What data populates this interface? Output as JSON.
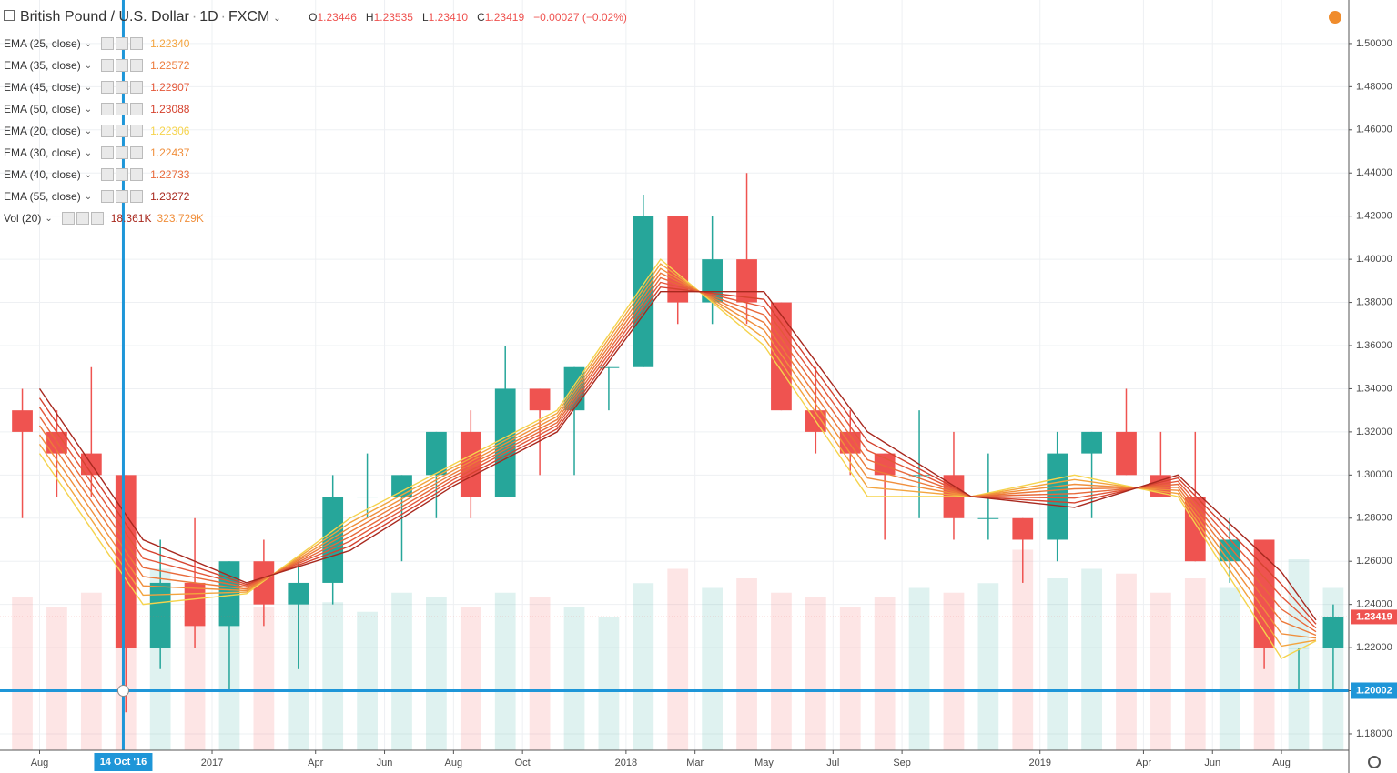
{
  "chart_data": {
    "type": "candlestick",
    "header": {
      "symbol": "British Pound / U.S. Dollar",
      "interval": "1D",
      "exchange": "FXCM",
      "open_label": "O",
      "open": "1.23446",
      "high_label": "H",
      "high": "1.23535",
      "low_label": "L",
      "low": "1.23410",
      "close_label": "C",
      "close": "1.23419",
      "change": "−0.00027 (−0.02%)"
    },
    "up_color": "#26a69a",
    "down_color": "#ef5350",
    "xlim": [
      "2016-06-27",
      "2019-09-30"
    ],
    "ylim": [
      1.1724,
      1.5202
    ],
    "yticks": [
      {
        "value": 1.18,
        "label": "1.18000"
      },
      {
        "value": 1.2,
        "label": "1.20000"
      },
      {
        "value": 1.22,
        "label": "1.22000"
      },
      {
        "value": 1.24,
        "label": "1.24000"
      },
      {
        "value": 1.26,
        "label": "1.26000"
      },
      {
        "value": 1.28,
        "label": "1.28000"
      },
      {
        "value": 1.3,
        "label": "1.30000"
      },
      {
        "value": 1.32,
        "label": "1.32000"
      },
      {
        "value": 1.34,
        "label": "1.34000"
      },
      {
        "value": 1.36,
        "label": "1.36000"
      },
      {
        "value": 1.38,
        "label": "1.38000"
      },
      {
        "value": 1.4,
        "label": "1.40000"
      },
      {
        "value": 1.42,
        "label": "1.42000"
      },
      {
        "value": 1.44,
        "label": "1.44000"
      },
      {
        "value": 1.46,
        "label": "1.46000"
      },
      {
        "value": 1.48,
        "label": "1.48000"
      },
      {
        "value": 1.5,
        "label": "1.50000"
      }
    ],
    "xticks": [
      {
        "value": "2016-08",
        "label": "Aug"
      },
      {
        "value": "2017-01",
        "label": "2017"
      },
      {
        "value": "2017-04",
        "label": "Apr"
      },
      {
        "value": "2017-06",
        "label": "Jun"
      },
      {
        "value": "2017-08",
        "label": "Aug"
      },
      {
        "value": "2017-10",
        "label": "Oct"
      },
      {
        "value": "2018-01",
        "label": "2018"
      },
      {
        "value": "2018-03",
        "label": "Mar"
      },
      {
        "value": "2018-05",
        "label": "May"
      },
      {
        "value": "2018-07",
        "label": "Jul"
      },
      {
        "value": "2018-09",
        "label": "Sep"
      },
      {
        "value": "2019-01",
        "label": "2019"
      },
      {
        "value": "2019-04",
        "label": "Apr"
      },
      {
        "value": "2019-06",
        "label": "Jun"
      },
      {
        "value": "2019-08",
        "label": "Aug"
      }
    ],
    "grid": true,
    "crosshair": {
      "x": {
        "value": "2016-10-14",
        "label": "14 Oct '16"
      },
      "y": {
        "value": 1.20002,
        "label": "1.20002"
      },
      "color": "#1e96d8"
    },
    "candles": {
      "x": [
        "2016-07",
        "2016-08",
        "2016-09",
        "2016-10",
        "2016-11",
        "2016-12",
        "2017-01",
        "2017-02",
        "2017-03",
        "2017-04",
        "2017-05",
        "2017-06",
        "2017-07",
        "2017-08",
        "2017-09",
        "2017-10",
        "2017-11",
        "2017-12",
        "2018-01",
        "2018-02",
        "2018-03",
        "2018-04",
        "2018-05",
        "2018-06",
        "2018-07",
        "2018-08",
        "2018-09",
        "2018-10",
        "2018-11",
        "2018-12",
        "2019-01",
        "2019-02",
        "2019-03",
        "2019-04",
        "2019-05",
        "2019-06",
        "2019-07",
        "2019-08",
        "2019-09"
      ],
      "open": [
        1.33,
        1.32,
        1.31,
        1.3,
        1.22,
        1.25,
        1.23,
        1.26,
        1.24,
        1.25,
        1.29,
        1.29,
        1.3,
        1.32,
        1.29,
        1.34,
        1.33,
        1.35,
        1.35,
        1.42,
        1.38,
        1.4,
        1.38,
        1.33,
        1.32,
        1.31,
        1.3,
        1.3,
        1.28,
        1.28,
        1.27,
        1.31,
        1.32,
        1.3,
        1.29,
        1.26,
        1.27,
        1.22,
        1.22
      ],
      "high": [
        1.34,
        1.33,
        1.35,
        1.3,
        1.27,
        1.28,
        1.26,
        1.27,
        1.26,
        1.3,
        1.31,
        1.3,
        1.32,
        1.33,
        1.36,
        1.34,
        1.35,
        1.35,
        1.43,
        1.42,
        1.42,
        1.44,
        1.38,
        1.35,
        1.33,
        1.31,
        1.33,
        1.32,
        1.31,
        1.28,
        1.32,
        1.32,
        1.34,
        1.32,
        1.32,
        1.28,
        1.27,
        1.22,
        1.24
      ],
      "low": [
        1.28,
        1.29,
        1.29,
        1.19,
        1.21,
        1.22,
        1.2,
        1.23,
        1.21,
        1.24,
        1.28,
        1.26,
        1.28,
        1.28,
        1.29,
        1.3,
        1.3,
        1.33,
        1.35,
        1.37,
        1.37,
        1.37,
        1.33,
        1.31,
        1.3,
        1.27,
        1.28,
        1.27,
        1.27,
        1.25,
        1.26,
        1.28,
        1.3,
        1.29,
        1.26,
        1.25,
        1.21,
        1.2,
        1.2
      ],
      "close": [
        1.32,
        1.31,
        1.3,
        1.22,
        1.25,
        1.23,
        1.26,
        1.24,
        1.25,
        1.29,
        1.29,
        1.3,
        1.32,
        1.29,
        1.34,
        1.33,
        1.35,
        1.35,
        1.42,
        1.38,
        1.4,
        1.38,
        1.33,
        1.32,
        1.31,
        1.3,
        1.3,
        1.28,
        1.28,
        1.27,
        1.31,
        1.32,
        1.3,
        1.29,
        1.26,
        1.27,
        1.22,
        1.22,
        1.23419
      ],
      "volume": [
        320,
        300,
        330,
        520,
        380,
        300,
        340,
        300,
        320,
        310,
        290,
        330,
        320,
        300,
        330,
        320,
        300,
        280,
        350,
        380,
        340,
        360,
        330,
        320,
        300,
        320,
        340,
        330,
        350,
        420,
        360,
        380,
        370,
        330,
        360,
        340,
        380,
        400,
        340
      ]
    },
    "volume_lim": [
      0,
      800
    ],
    "volume_legend": {
      "name": "Vol (20)",
      "value": "18.361K",
      "average": "323.729K"
    },
    "ema_x": [
      "2016-08",
      "2016-11",
      "2017-02",
      "2017-05",
      "2017-08",
      "2017-11",
      "2018-02",
      "2018-05",
      "2018-08",
      "2018-11",
      "2019-02",
      "2019-05",
      "2019-08",
      "2019-09"
    ],
    "indicators": [
      {
        "name": "EMA (25, close)",
        "color": "#f3a43e",
        "last_label": "1.22340",
        "values": [
          1.3143,
          1.2443,
          1.2457,
          1.2779,
          1.3036,
          1.3286,
          1.3979,
          1.3636,
          1.2943,
          1.29,
          1.2979,
          1.2914,
          1.2207,
          1.2234
        ]
      },
      {
        "name": "EMA (35, close)",
        "color": "#ec7a3a",
        "last_label": "1.22572",
        "values": [
          1.3229,
          1.2529,
          1.2471,
          1.2736,
          1.3007,
          1.3257,
          1.3936,
          1.3707,
          1.3029,
          1.29,
          1.2936,
          1.2943,
          1.2322,
          1.22572
        ]
      },
      {
        "name": "EMA (45, close)",
        "color": "#e4583a",
        "last_label": "1.22907",
        "values": [
          1.3314,
          1.2614,
          1.2486,
          1.2693,
          1.2979,
          1.3229,
          1.3893,
          1.3779,
          1.3114,
          1.29,
          1.2893,
          1.2971,
          1.2436,
          1.22907
        ]
      },
      {
        "name": "EMA (50, close)",
        "color": "#d5432f",
        "last_label": "1.23088",
        "values": [
          1.3357,
          1.2657,
          1.2493,
          1.2671,
          1.2964,
          1.3214,
          1.3871,
          1.3814,
          1.3157,
          1.29,
          1.2871,
          1.2986,
          1.2493,
          1.23088
        ]
      },
      {
        "name": "EMA (20, close)",
        "color": "#f5d34c",
        "last_label": "1.22306",
        "values": [
          1.31,
          1.24,
          1.245,
          1.28,
          1.305,
          1.33,
          1.4,
          1.36,
          1.29,
          1.29,
          1.3,
          1.29,
          1.215,
          1.22306
        ]
      },
      {
        "name": "EMA (30, close)",
        "color": "#f08f3c",
        "last_label": "1.22437",
        "values": [
          1.3186,
          1.2486,
          1.2464,
          1.2757,
          1.3021,
          1.3271,
          1.3957,
          1.3672,
          1.2986,
          1.29,
          1.2957,
          1.2929,
          1.2264,
          1.22437
        ]
      },
      {
        "name": "EMA (40, close)",
        "color": "#e8693a",
        "last_label": "1.22733",
        "values": [
          1.3271,
          1.2571,
          1.2479,
          1.2714,
          1.2993,
          1.3243,
          1.3914,
          1.3743,
          1.3071,
          1.29,
          1.2914,
          1.2957,
          1.2378,
          1.22733
        ]
      },
      {
        "name": "EMA (55, close)",
        "color": "#a8281e",
        "last_label": "1.23272",
        "values": [
          1.34,
          1.27,
          1.25,
          1.265,
          1.295,
          1.32,
          1.385,
          1.385,
          1.32,
          1.29,
          1.285,
          1.3,
          1.255,
          1.23272
        ]
      }
    ]
  }
}
